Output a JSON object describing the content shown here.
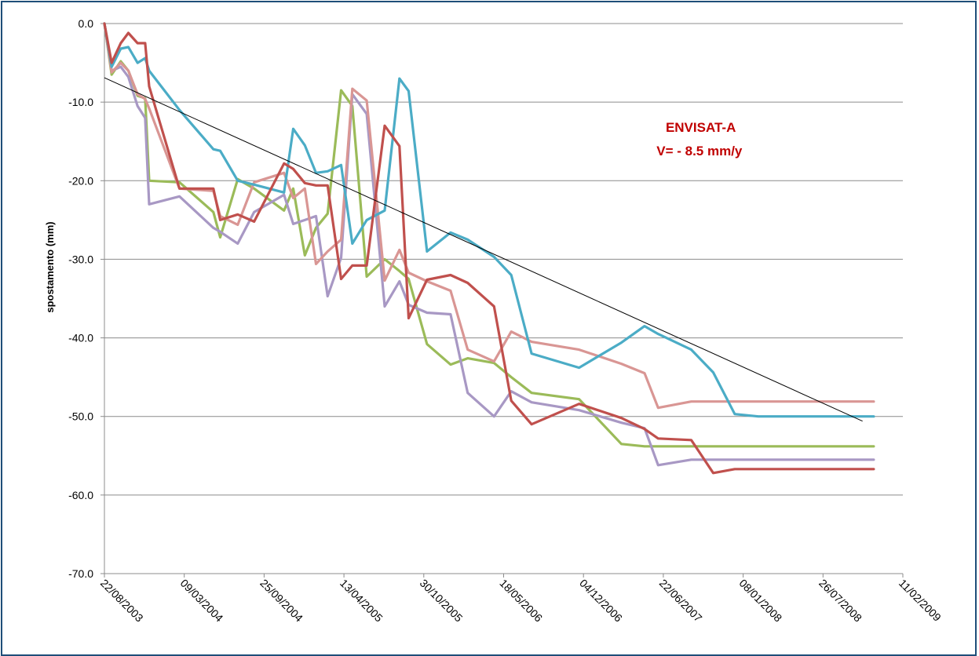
{
  "chart_data": {
    "type": "line",
    "title": "",
    "xlabel": "",
    "ylabel": "spostamento (mm)",
    "ylim": [
      -70,
      0
    ],
    "xlim": [
      "22/08/2003",
      "11/02/2009"
    ],
    "y_ticks": [
      "0.0",
      "-10.0",
      "-20.0",
      "-30.0",
      "-40.0",
      "-50.0",
      "-60.0",
      "-70.0"
    ],
    "y_tick_values": [
      0,
      -10,
      -20,
      -30,
      -40,
      -50,
      -60,
      -70
    ],
    "x_ticks": [
      "22/08/2003",
      "09/03/2004",
      "25/09/2004",
      "13/04/2005",
      "30/10/2005",
      "18/05/2006",
      "04/12/2006",
      "22/06/2007",
      "08/01/2008",
      "26/07/2008",
      "11/02/2009"
    ],
    "grid": true,
    "legend": "none",
    "annotations": [
      {
        "text": "ENVISAT-A",
        "x": "28/06/2007",
        "y": -13.8,
        "color": "#c00000"
      },
      {
        "text": "V= - 8.5 mm/y",
        "x": "05/06/2007",
        "y": -16.8,
        "color": "#c00000"
      }
    ],
    "trend": {
      "x": [
        "22/08/2003",
        "02/11/2008"
      ],
      "y": [
        -6.9,
        -50.6
      ],
      "color": "#000000"
    },
    "x": [
      "22/08/2003",
      "26/09/2003",
      "31/10/2003",
      "05/12/2003",
      "09/01/2004",
      "13/02/2004",
      "19/03/2004",
      "23/04/2004",
      "28/05/2004",
      "02/07/2004",
      "06/08/2004",
      "10/09/2004",
      "15/10/2004",
      "19/11/2004",
      "24/12/2004",
      "28/01/2005",
      "04/03/2005",
      "08/04/2005",
      "13/05/2005",
      "17/06/2005",
      "22/07/2005",
      "26/08/2005",
      "30/09/2005",
      "04/11/2005",
      "09/12/2005",
      "13/01/2006",
      "17/02/2006",
      "24/03/2006",
      "28/04/2006",
      "02/06/2006",
      "07/07/2006",
      "11/08/2006",
      "15/09/2006",
      "20/10/2006",
      "24/11/2006",
      "29/12/2006",
      "02/02/2007",
      "09/03/2007",
      "13/04/2007",
      "18/05/2007",
      "22/06/2007",
      "27/07/2007",
      "31/08/2007",
      "05/10/2007",
      "09/11/2007",
      "14/12/2007",
      "18/01/2008",
      "22/02/2008",
      "28/03/2008",
      "02/05/2008",
      "06/06/2008",
      "11/07/2008",
      "15/08/2008",
      "19/09/2008",
      "24/10/2008",
      "28/11/2008",
      "02/01/2009"
    ],
    "series": [
      {
        "color": "#4bacc6",
        "x": [
          "22/08/2003",
          "09/09/2003",
          "02/10/2003",
          "21/10/2003",
          "13/11/2003",
          "02/12/2003",
          "12/12/2003",
          "26/02/2004",
          "21/05/2004",
          "07/06/2004",
          "21/07/2004",
          "31/08/2004",
          "14/11/2004",
          "07/12/2004",
          "05/01/2005",
          "02/02/2005",
          "03/03/2005",
          "06/04/2005",
          "04/05/2005",
          "09/06/2005",
          "24/07/2005",
          "30/08/2005",
          "22/09/2005",
          "07/11/2005",
          "05/01/2006",
          "17/02/2006",
          "24/04/2006",
          "06/06/2006",
          "27/07/2006",
          "23/11/2006",
          "09/03/2007",
          "06/05/2007",
          "09/06/2007",
          "31/08/2007",
          "25/10/2007",
          "18/12/2007",
          "15/02/2008",
          "04/05/2008",
          "25/07/2008",
          "21/09/2008",
          "28/10/2008",
          "30/11/2008"
        ],
        "y": [
          0,
          -5.5,
          -3.2,
          -3,
          -5,
          -4.4,
          -6,
          -11,
          -16,
          -16.2,
          -20,
          -20.5,
          -21.5,
          -13.4,
          -15.5,
          -19,
          -18.8,
          -18,
          -28,
          -25,
          -23.8,
          -7,
          -8.6,
          -29,
          -26.6,
          -27.5,
          -29.7,
          -32,
          -42,
          -43.8,
          -40.6,
          -38.5,
          -39.5,
          -41.5,
          -44.4,
          -49.7,
          -50.0,
          -50.0,
          -50.0,
          -50.0,
          -50.0,
          -50.0
        ]
      },
      {
        "color": "#c0504d",
        "x": [
          "22/08/2003",
          "09/09/2003",
          "02/10/2003",
          "21/10/2003",
          "13/11/2003",
          "02/12/2003",
          "12/12/2003",
          "26/02/2004",
          "21/05/2004",
          "07/06/2004",
          "21/07/2004",
          "31/08/2004",
          "14/11/2004",
          "07/12/2004",
          "05/01/2005",
          "02/02/2005",
          "03/03/2005",
          "06/04/2005",
          "04/05/2005",
          "09/06/2005",
          "24/07/2005",
          "30/08/2005",
          "22/09/2005",
          "07/11/2005",
          "05/01/2006",
          "17/02/2006",
          "24/04/2006",
          "06/06/2006",
          "27/07/2006",
          "23/11/2006",
          "09/03/2007",
          "06/05/2007",
          "09/06/2007",
          "31/08/2007",
          "25/10/2007",
          "18/12/2007",
          "15/02/2008",
          "04/05/2008",
          "25/07/2008",
          "21/09/2008",
          "28/10/2008",
          "30/11/2008"
        ],
        "y": [
          0,
          -5,
          -2.5,
          -1.2,
          -2.5,
          -2.5,
          -8,
          -21,
          -21,
          -25,
          -24.3,
          -25.2,
          -17.8,
          -18.5,
          -20.3,
          -20.6,
          -20.6,
          -32.5,
          -30.8,
          -30.8,
          -13,
          -15.6,
          -37.5,
          -32.6,
          -32,
          -33,
          -36,
          -48,
          -51,
          -48.4,
          -50.2,
          -51.6,
          -52.8,
          -53,
          -57.2,
          -56.7,
          -56.7,
          -56.7,
          -56.7,
          -56.7,
          -56.7,
          -56.7
        ]
      },
      {
        "color": "#d99694",
        "x": [
          "22/08/2003",
          "09/09/2003",
          "02/10/2003",
          "21/10/2003",
          "13/11/2003",
          "02/12/2003",
          "12/12/2003",
          "26/02/2004",
          "21/05/2004",
          "07/06/2004",
          "21/07/2004",
          "31/08/2004",
          "14/11/2004",
          "07/12/2004",
          "05/01/2005",
          "02/02/2005",
          "03/03/2005",
          "06/04/2005",
          "04/05/2005",
          "09/06/2005",
          "24/07/2005",
          "30/08/2005",
          "22/09/2005",
          "07/11/2005",
          "05/01/2006",
          "17/02/2006",
          "24/04/2006",
          "06/06/2006",
          "27/07/2006",
          "23/11/2006",
          "09/03/2007",
          "06/05/2007",
          "09/06/2007",
          "31/08/2007",
          "25/10/2007",
          "18/12/2007",
          "15/02/2008",
          "04/05/2008",
          "25/07/2008",
          "21/09/2008",
          "28/10/2008",
          "30/11/2008"
        ],
        "y": [
          0,
          -6.2,
          -5,
          -6,
          -9,
          -9.6,
          -10.8,
          -21,
          -21.3,
          -24.5,
          -25.6,
          -20.2,
          -19,
          -22.2,
          -21,
          -30.6,
          -29,
          -27.5,
          -8.3,
          -9.8,
          -32.7,
          -28.8,
          -31.7,
          -32.8,
          -34,
          -41.5,
          -43,
          -39.2,
          -40.5,
          -41.5,
          -43.3,
          -44.5,
          -48.9,
          -48.1,
          -48.1,
          -48.1,
          -48.1,
          -48.1,
          -48.1,
          -48.1,
          -48.1,
          -48.1
        ]
      },
      {
        "color": "#9bbb59",
        "x": [
          "22/08/2003",
          "09/09/2003",
          "02/10/2003",
          "21/10/2003",
          "13/11/2003",
          "02/12/2003",
          "12/12/2003",
          "26/02/2004",
          "21/05/2004",
          "07/06/2004",
          "21/07/2004",
          "31/08/2004",
          "14/11/2004",
          "07/12/2004",
          "05/01/2005",
          "02/02/2005",
          "03/03/2005",
          "06/04/2005",
          "04/05/2005",
          "09/06/2005",
          "24/07/2005",
          "30/08/2005",
          "22/09/2005",
          "07/11/2005",
          "05/01/2006",
          "17/02/2006",
          "24/04/2006",
          "06/06/2006",
          "27/07/2006",
          "23/11/2006",
          "09/03/2007",
          "06/05/2007",
          "09/06/2007",
          "31/08/2007",
          "25/10/2007",
          "18/12/2007",
          "15/02/2008",
          "04/05/2008",
          "25/07/2008",
          "21/09/2008",
          "28/10/2008",
          "30/11/2008"
        ],
        "y": [
          0,
          -6.5,
          -4.8,
          -6,
          -9.2,
          -9.5,
          -20,
          -20.2,
          -24,
          -27.2,
          -19.8,
          -21,
          -23.8,
          -21,
          -29.5,
          -26,
          -24.2,
          -8.5,
          -10.5,
          -32.2,
          -30,
          -31.5,
          -32.5,
          -40.8,
          -43.4,
          -42.6,
          -43.2,
          -45,
          -47,
          -47.8,
          -53.5,
          -53.8,
          -53.8,
          -53.8,
          -53.8,
          -53.8,
          -53.8,
          -53.8,
          -53.8,
          -53.8,
          -53.8,
          -53.8
        ]
      },
      {
        "color": "#a898c4",
        "x": [
          "22/08/2003",
          "09/09/2003",
          "02/10/2003",
          "21/10/2003",
          "13/11/2003",
          "02/12/2003",
          "12/12/2003",
          "26/02/2004",
          "21/05/2004",
          "07/06/2004",
          "21/07/2004",
          "31/08/2004",
          "14/11/2004",
          "07/12/2004",
          "05/01/2005",
          "02/02/2005",
          "03/03/2005",
          "06/04/2005",
          "04/05/2005",
          "09/06/2005",
          "24/07/2005",
          "30/08/2005",
          "22/09/2005",
          "07/11/2005",
          "05/01/2006",
          "17/02/2006",
          "24/04/2006",
          "06/06/2006",
          "27/07/2006",
          "23/11/2006",
          "09/03/2007",
          "06/05/2007",
          "09/06/2007",
          "31/08/2007",
          "25/10/2007",
          "18/12/2007",
          "15/02/2008",
          "04/05/2008",
          "25/07/2008",
          "21/09/2008",
          "28/10/2008",
          "30/11/2008"
        ],
        "y": [
          0,
          -6,
          -5.5,
          -6.8,
          -10.5,
          -12,
          -23,
          -22,
          -26,
          -26.5,
          -28,
          -24,
          -21.8,
          -25.5,
          -25,
          -24.5,
          -34.7,
          -29.8,
          -9,
          -11.5,
          -36,
          -32.8,
          -35.8,
          -36.8,
          -37,
          -47,
          -50,
          -46.8,
          -48.2,
          -49.2,
          -50.8,
          -51.5,
          -56.2,
          -55.5,
          -55.5,
          -55.5,
          -55.5,
          -55.5,
          -55.5,
          -55.5,
          -55.5,
          -55.5
        ]
      }
    ]
  }
}
